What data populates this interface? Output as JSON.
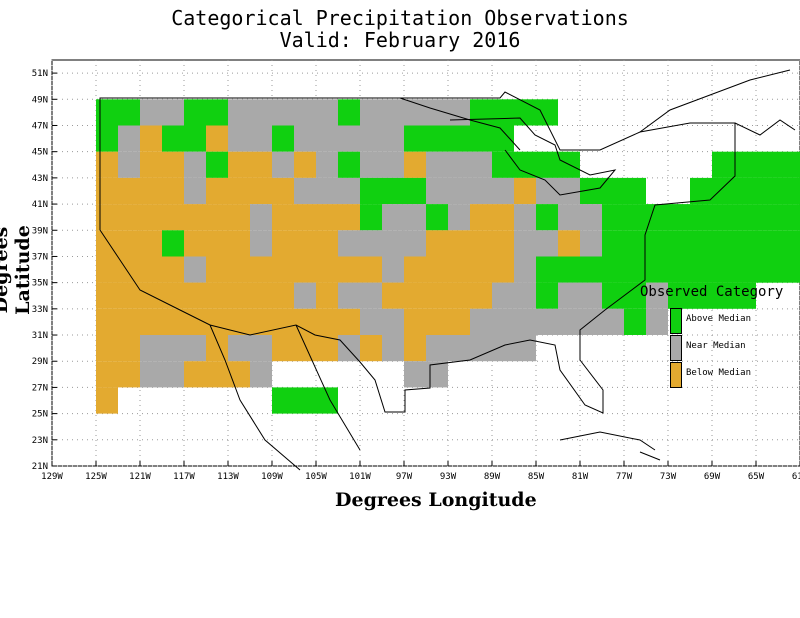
{
  "title": {
    "line1": "Categorical Precipitation Observations",
    "line2": "Valid: February 2016"
  },
  "axes": {
    "xlabel": "Degrees Longitude",
    "ylabel": "Degrees Latitude",
    "x_ticks": [
      "129W",
      "125W",
      "121W",
      "117W",
      "113W",
      "109W",
      "105W",
      "101W",
      "97W",
      "93W",
      "89W",
      "85W",
      "81W",
      "77W",
      "73W",
      "69W",
      "65W",
      "61W"
    ],
    "y_ticks": [
      "51N",
      "49N",
      "47N",
      "45N",
      "43N",
      "41N",
      "39N",
      "37N",
      "35N",
      "33N",
      "31N",
      "29N",
      "27N",
      "25N",
      "23N",
      "21N"
    ],
    "lon_range": [
      -129,
      -61
    ],
    "lat_range": [
      21,
      52
    ]
  },
  "legend": {
    "title": "Observed Category",
    "items": [
      {
        "label": "Above Median",
        "color": "#10d010"
      },
      {
        "label": "Near Median",
        "color": "#a9a9a9"
      },
      {
        "label": "Below Median",
        "color": "#e3aa30"
      }
    ]
  },
  "map_data": {
    "cell_size_deg": 2,
    "categories": {
      "A": "Above Median",
      "N": "Near Median",
      "B": "Below Median"
    },
    "colors": {
      "A": "#10d010",
      "N": "#a9a9a9",
      "B": "#e3aa30"
    },
    "rows": [
      {
        "lat": 48,
        "cells": "AANNAANNNNNANNNNNAAAA"
      },
      {
        "lat": 46,
        "cells": "ANBAABNNANNNNNAAAAA"
      },
      {
        "lat": 44,
        "cells": "BNBBNABBNBNANNBNNNAAAA......AAAAAA"
      },
      {
        "lat": 42,
        "cells": "BBBBNBBBBNNNAAANNNNBNNAAA..AAAAAAAAA"
      },
      {
        "lat": 40,
        "cells": "BBBBBBBNBBBBANNANBBNANNAAAAAAAAAAAAA"
      },
      {
        "lat": 38,
        "cells": "BBBABBBNBBBNNNNBBBBNNBNAAAAAAAAAAA"
      },
      {
        "lat": 36,
        "cells": "BBBBNBBBBBBBBNBBBBBNAAAAAAAAAAAAA"
      },
      {
        "lat": 34,
        "cells": "BBBBBBBBBNBNNBBBBBNNANNAANAAAA"
      },
      {
        "lat": 32,
        "cells": "BBBBBBBBBBBBNNBBBNNNNNNNAN"
      },
      {
        "lat": 30,
        "cells": "BBNNNBNNBBBNBNBNNNNN"
      },
      {
        "lat": 28,
        "cells": "BBNNBBBN......NN"
      },
      {
        "lat": 26,
        "cells": "B.......AAA"
      }
    ]
  }
}
